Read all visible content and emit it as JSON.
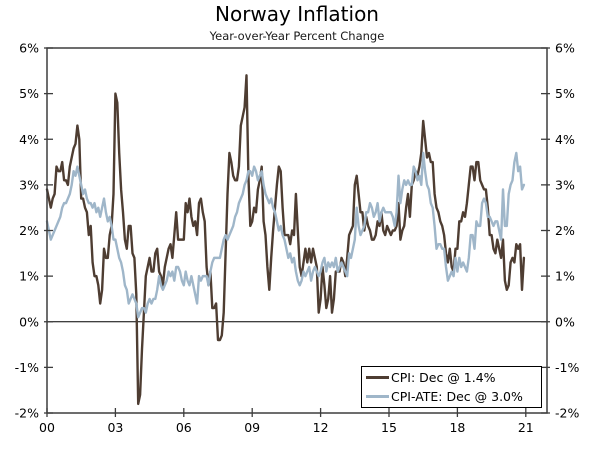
{
  "chart_data": {
    "type": "line",
    "title": "Norway Inflation",
    "subtitle": "Year-over-Year Percent Change",
    "grid": "off",
    "zero_line": true,
    "legend_position": "bottom-right",
    "axis_color": "#3d3d3d",
    "text_color": "#000000",
    "ylim": [
      -2,
      6
    ],
    "y_tick_values": [
      6,
      5,
      4,
      3,
      2,
      1,
      0,
      -1,
      -2
    ],
    "y_tick_labels": [
      "6%",
      "5%",
      "4%",
      "3%",
      "2%",
      "1%",
      "0%",
      "-1%",
      "-2%"
    ],
    "xlim_years": [
      2000,
      2021.93
    ],
    "x_tick_years": [
      2000,
      2003,
      2006,
      2009,
      2012,
      2015,
      2018,
      2021
    ],
    "x_tick_labels": [
      "00",
      "03",
      "06",
      "09",
      "12",
      "15",
      "18",
      "21"
    ],
    "x_start_year": 2000,
    "points_per_year": 12,
    "series": [
      {
        "name": "CPI",
        "label": "CPI: Dec @ 1.4%",
        "color": "#4E3D32",
        "values": [
          2.9,
          2.7,
          2.5,
          2.7,
          2.8,
          3.4,
          3.3,
          3.3,
          3.5,
          3.1,
          3.1,
          3.0,
          3.4,
          3.6,
          3.8,
          3.9,
          4.3,
          4.0,
          2.7,
          2.7,
          2.5,
          2.4,
          1.9,
          2.1,
          1.3,
          1.0,
          1.0,
          0.8,
          0.4,
          0.7,
          1.6,
          1.4,
          1.4,
          1.9,
          2.1,
          2.8,
          5.0,
          4.8,
          3.7,
          2.9,
          2.4,
          1.8,
          1.6,
          2.1,
          2.1,
          1.5,
          1.4,
          0.6,
          -1.8,
          -1.6,
          -0.6,
          0.2,
          1.0,
          1.2,
          1.4,
          1.1,
          1.1,
          1.5,
          1.6,
          1.1,
          1.0,
          0.8,
          1.2,
          1.4,
          1.6,
          1.7,
          1.4,
          1.9,
          2.4,
          1.8,
          1.8,
          1.8,
          1.8,
          2.6,
          2.4,
          2.7,
          2.3,
          2.1,
          2.2,
          1.9,
          2.6,
          2.7,
          2.4,
          2.2,
          1.2,
          0.8,
          1.1,
          0.3,
          0.3,
          0.4,
          -0.4,
          -0.4,
          -0.3,
          0.2,
          1.5,
          2.8,
          3.7,
          3.5,
          3.2,
          3.1,
          3.1,
          3.4,
          4.3,
          4.5,
          4.7,
          5.4,
          3.2,
          2.1,
          2.2,
          2.5,
          2.4,
          2.9,
          3.1,
          3.4,
          2.2,
          1.9,
          1.2,
          0.7,
          1.4,
          2.0,
          2.5,
          3.0,
          3.4,
          3.3,
          2.5,
          1.9,
          1.9,
          1.9,
          1.7,
          2.0,
          1.9,
          2.8,
          2.0,
          1.2,
          1.0,
          1.3,
          1.6,
          1.3,
          1.6,
          1.3,
          1.6,
          1.4,
          1.2,
          0.2,
          0.5,
          1.2,
          0.8,
          0.3,
          0.5,
          1.0,
          0.2,
          0.5,
          1.1,
          1.1,
          1.1,
          1.4,
          1.3,
          1.0,
          1.4,
          1.9,
          2.0,
          2.1,
          3.0,
          3.2,
          2.8,
          2.4,
          2.4,
          2.0,
          2.3,
          2.1,
          2.0,
          1.8,
          1.8,
          1.9,
          2.2,
          2.1,
          2.4,
          2.0,
          1.9,
          2.1,
          2.0,
          1.9,
          2.0,
          2.0,
          2.1,
          2.6,
          1.8,
          2.0,
          2.1,
          2.5,
          2.8,
          2.3,
          3.0,
          3.1,
          3.3,
          3.2,
          3.4,
          3.7,
          4.4,
          4.0,
          3.6,
          3.7,
          3.5,
          3.5,
          2.8,
          2.5,
          2.4,
          2.2,
          2.1,
          1.9,
          1.5,
          1.3,
          1.6,
          1.2,
          1.1,
          1.6,
          1.6,
          2.2,
          2.2,
          2.4,
          2.3,
          2.6,
          3.0,
          3.4,
          3.4,
          3.1,
          3.5,
          3.5,
          3.1,
          3.0,
          2.9,
          2.9,
          2.5,
          1.9,
          1.9,
          1.6,
          1.5,
          1.8,
          1.6,
          1.4,
          1.8,
          0.9,
          0.7,
          0.8,
          1.3,
          1.4,
          1.3,
          1.7,
          1.6,
          1.7,
          0.7,
          1.4
        ]
      },
      {
        "name": "CPI-ATE",
        "label": "CPI-ATE: Dec @ 3.0%",
        "color": "#9FB6C9",
        "values": [
          2.2,
          2.0,
          1.8,
          1.9,
          2.0,
          2.1,
          2.2,
          2.3,
          2.5,
          2.6,
          2.6,
          2.7,
          2.8,
          3.0,
          3.3,
          3.2,
          3.4,
          3.2,
          3.0,
          2.8,
          2.9,
          2.7,
          2.6,
          2.6,
          2.5,
          2.6,
          2.4,
          2.5,
          2.3,
          2.5,
          2.7,
          2.4,
          2.2,
          2.3,
          2.1,
          1.8,
          1.8,
          1.6,
          1.4,
          1.3,
          1.1,
          0.8,
          0.7,
          0.4,
          0.5,
          0.6,
          0.5,
          0.4,
          0.1,
          0.2,
          0.3,
          0.3,
          0.2,
          0.4,
          0.5,
          0.4,
          0.5,
          0.5,
          0.7,
          1.0,
          0.8,
          0.7,
          0.8,
          0.9,
          1.1,
          1.0,
          1.1,
          0.9,
          1.2,
          1.2,
          1.1,
          0.9,
          0.8,
          1.1,
          0.9,
          0.8,
          1.0,
          0.8,
          0.6,
          0.4,
          1.0,
          0.9,
          1.0,
          1.0,
          1.0,
          0.8,
          1.1,
          1.3,
          1.4,
          1.4,
          1.4,
          1.4,
          1.6,
          1.8,
          1.9,
          1.8,
          1.9,
          2.0,
          2.1,
          2.3,
          2.4,
          2.6,
          2.7,
          2.8,
          3.0,
          3.1,
          3.3,
          3.3,
          3.2,
          3.4,
          3.3,
          3.1,
          3.2,
          3.3,
          3.0,
          2.8,
          2.7,
          2.6,
          2.7,
          2.5,
          2.4,
          2.2,
          2.0,
          2.1,
          1.9,
          1.8,
          1.6,
          1.4,
          1.5,
          1.3,
          1.4,
          1.1,
          0.9,
          0.8,
          0.9,
          1.1,
          1.0,
          1.1,
          1.2,
          0.9,
          1.1,
          1.2,
          1.1,
          1.0,
          1.1,
          1.3,
          1.4,
          1.1,
          1.3,
          1.2,
          1.3,
          1.2,
          1.4,
          1.1,
          1.2,
          1.3,
          1.2,
          1.1,
          1.0,
          1.5,
          1.4,
          1.6,
          1.8,
          2.5,
          2.1,
          1.9,
          2.0,
          2.1,
          2.4,
          2.4,
          2.6,
          2.5,
          2.3,
          2.4,
          2.6,
          2.2,
          2.4,
          2.5,
          2.4,
          2.4,
          2.4,
          2.4,
          2.3,
          2.1,
          2.4,
          3.2,
          2.6,
          2.9,
          3.1,
          3.0,
          3.1,
          3.0,
          3.0,
          3.4,
          3.3,
          3.1,
          3.2,
          3.0,
          3.7,
          3.3,
          3.0,
          2.9,
          2.6,
          2.5,
          2.1,
          1.6,
          1.7,
          1.7,
          1.6,
          1.6,
          1.2,
          0.9,
          1.0,
          1.1,
          1.0,
          1.4,
          1.1,
          1.4,
          1.2,
          1.3,
          1.2,
          1.1,
          1.4,
          1.9,
          1.9,
          1.6,
          2.2,
          2.1,
          2.1,
          2.6,
          2.7,
          2.6,
          2.3,
          2.3,
          2.2,
          2.1,
          2.2,
          2.2,
          2.0,
          1.8,
          2.9,
          2.1,
          2.1,
          2.8,
          3.0,
          3.1,
          3.5,
          3.7,
          3.3,
          3.4,
          2.9,
          3.0
        ]
      }
    ]
  }
}
